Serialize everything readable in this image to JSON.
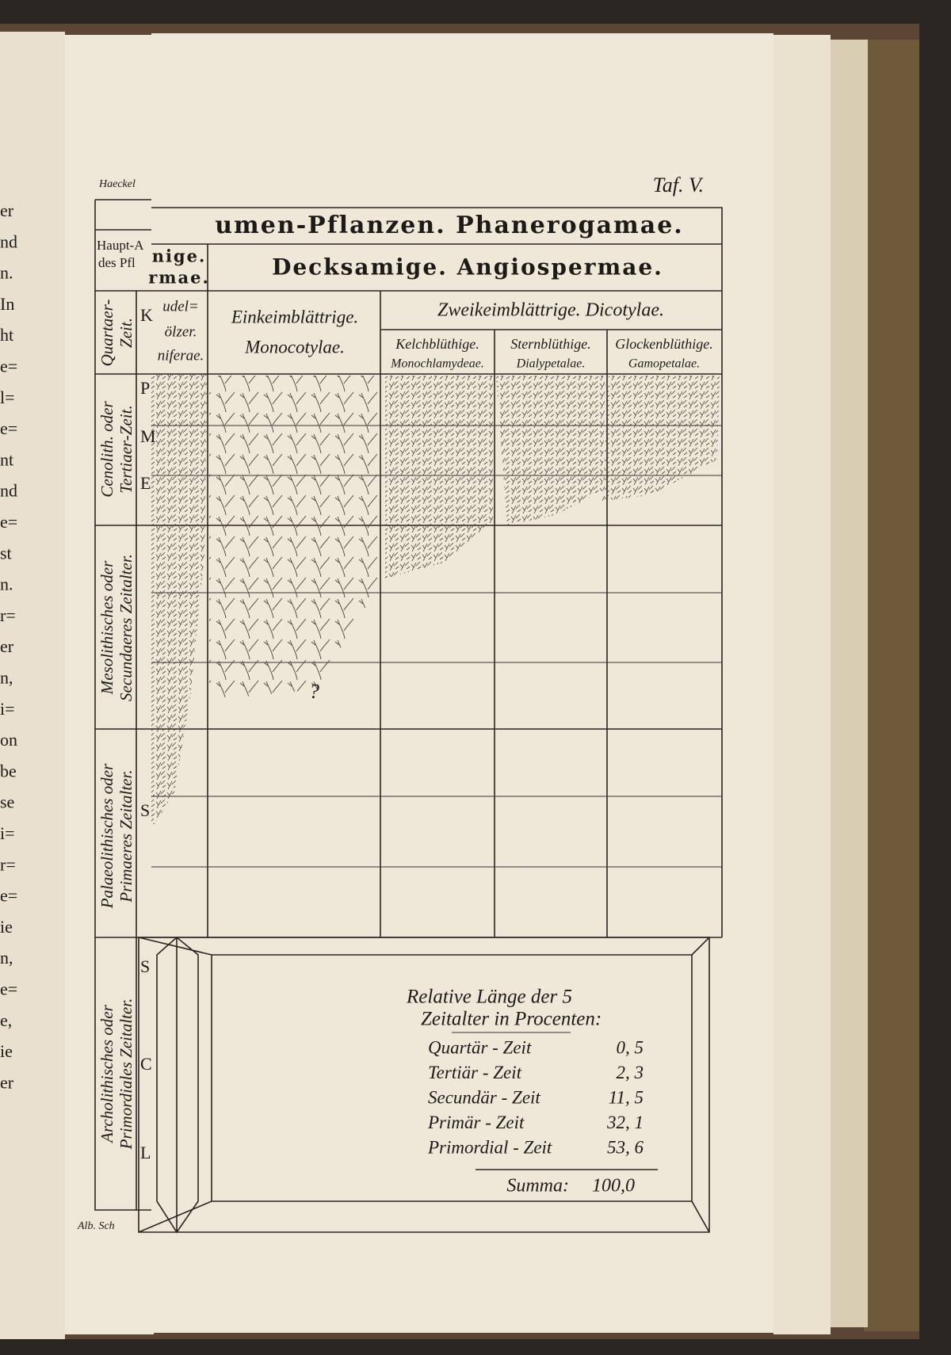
{
  "left_page": {
    "header": "Haeckel",
    "margin_fragments": [
      "er",
      "nd",
      "n.",
      "In",
      "ht",
      "e=",
      "l=",
      "e=",
      "nt",
      "nd",
      "e=",
      "st",
      "n.",
      "r=",
      "er",
      "n,",
      "i=",
      "on",
      "be",
      "se",
      "i=",
      "r=",
      "e=",
      "ie",
      "n,",
      "e=",
      "e,",
      "ie",
      "er"
    ],
    "table_fragments": [
      "Haupt-A",
      "des Pfl"
    ],
    "row_letters": [
      "K",
      "P",
      "M",
      "E",
      "S",
      "S",
      "C",
      "L"
    ],
    "footer": "Alb. Sch"
  },
  "plate": {
    "label": "Taf. V.",
    "title": "umen-Pflanzen. Phanerogamae.",
    "gymnospermae": [
      "nige.",
      "rmae."
    ],
    "angiospermae": "Decksamige. Angiospermae.",
    "coniferae": [
      "udel=",
      "ölzer.",
      "niferae."
    ],
    "monocotylae": [
      "Einkeimblättrige.",
      "Monocotylae."
    ],
    "dicotylae": "Zweikeimblättrige. Dicotylae.",
    "dicot_groups": [
      [
        "Kelchblüthige.",
        "Monochlamydeae."
      ],
      [
        "Sternblüthige.",
        "Dialypetalae."
      ],
      [
        "Glockenblüthige.",
        "Gamopetalae."
      ]
    ],
    "eras": [
      [
        "Quartaer-",
        "Zeit."
      ],
      [
        "Cenolith. oder",
        "Tertiaer-Zeit."
      ],
      [
        "Mesolithisches oder",
        "Secundaeres Zeitalter."
      ],
      [
        "Palaeolithisches oder",
        "Primaeres Zeitalter."
      ],
      [
        "Archolithisches oder",
        "Primordiales Zeitalter."
      ]
    ],
    "question_mark": "?",
    "summary": {
      "title": [
        "Relative Länge der 5",
        "Zeitalter in Procenten:"
      ],
      "rows": [
        {
          "label": "Quartär - Zeit",
          "value": "0, 5"
        },
        {
          "label": "Tertiär - Zeit",
          "value": "2, 3"
        },
        {
          "label": "Secundär - Zeit",
          "value": "11, 5"
        },
        {
          "label": "Primär - Zeit",
          "value": "32, 1"
        },
        {
          "label": "Primordial - Zeit",
          "value": "53, 6"
        }
      ],
      "total_label": "Summa:",
      "total": "100,0"
    }
  }
}
